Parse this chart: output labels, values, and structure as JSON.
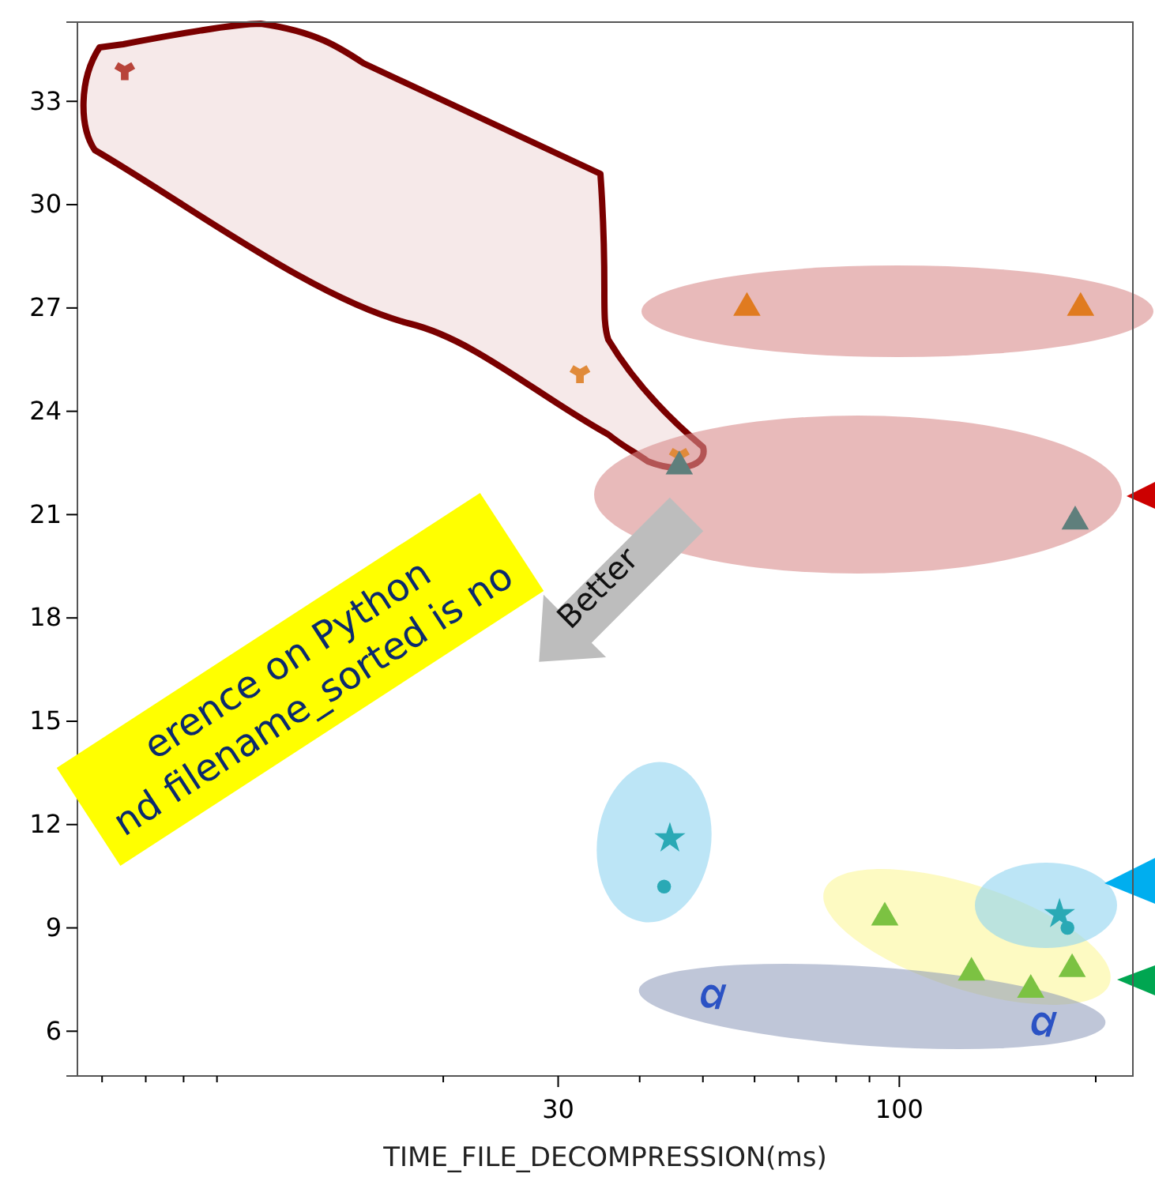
{
  "chart_data": {
    "type": "scatter",
    "xlabel": "TIME_FILE_DECOMPRESSION(ms)",
    "log": "x",
    "xlim": [
      5.5,
      228
    ],
    "ylim": [
      4.7,
      35.3
    ],
    "xticks": [
      {
        "value": 6,
        "label": null
      },
      {
        "value": 7,
        "label": null
      },
      {
        "value": 8,
        "label": null
      },
      {
        "value": 9,
        "label": null
      },
      {
        "value": 20,
        "label": null
      },
      30,
      {
        "value": 40,
        "label": null
      },
      {
        "value": 50,
        "label": null
      },
      {
        "value": 60,
        "label": null
      },
      {
        "value": 70,
        "label": null
      },
      {
        "value": 80,
        "label": null
      },
      {
        "value": 90,
        "label": null
      },
      100,
      {
        "value": 200,
        "label": null
      }
    ],
    "yticks": [
      6,
      9,
      12,
      15,
      18,
      21,
      24,
      27,
      30,
      33
    ],
    "grid": false,
    "series": [
      {
        "color": "#b8443a",
        "marker": "cross",
        "x": [
          6.5
        ],
        "values": [
          33.9
        ]
      },
      {
        "color": "#e08a3a",
        "marker": "cross",
        "x": [
          32.4,
          46
        ],
        "values": [
          25.1,
          22.7
        ]
      },
      {
        "color": "#e07b20",
        "marker": "triangle",
        "x": [
          58.4,
          189.6
        ],
        "values": [
          27.0,
          27.0
        ]
      },
      {
        "color": "#5f7f7c",
        "marker": "triangle",
        "x": [
          46,
          186
        ],
        "values": [
          22.4,
          20.8
        ]
      },
      {
        "color": "#2aa9b5",
        "marker": "star",
        "x": [
          44.5,
          176
        ],
        "values": [
          11.6,
          9.4
        ]
      },
      {
        "color": "#2aa9b5",
        "marker": "circle",
        "x": [
          43.6,
          181
        ],
        "values": [
          10.2,
          9.0
        ]
      },
      {
        "color": "#7cc242",
        "marker": "triangle",
        "x": [
          95,
          184
        ],
        "values": [
          9.3,
          7.8
        ]
      },
      {
        "color": "#7cc242",
        "marker": "triangle",
        "x": [
          129,
          159
        ],
        "values": [
          7.7,
          7.2
        ]
      },
      {
        "color": "#2b52c4",
        "x": [
          52,
          167
        ],
        "values": [
          7.0,
          6.2
        ]
      }
    ],
    "annotations": [
      "Better",
      "erence on Python",
      "nd filename_sorted  is no"
    ]
  }
}
